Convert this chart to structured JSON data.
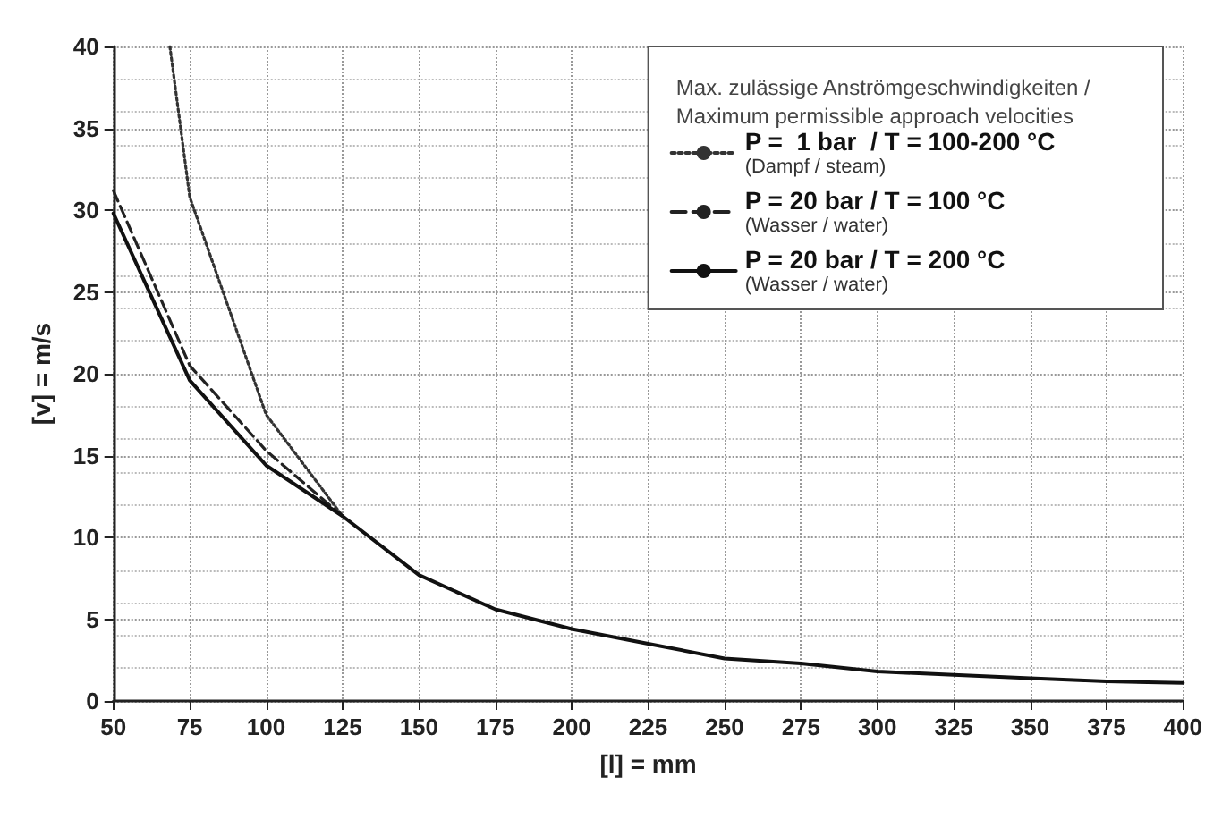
{
  "chart_data": {
    "type": "line",
    "title": "Max. zulässige Anströmgeschwindigkeiten /\nMaximum permissible approach velocities",
    "xlabel": "[l] = mm",
    "ylabel": "[v] = m/s",
    "xlim": [
      50,
      400
    ],
    "xticks": [
      50,
      75,
      100,
      125,
      150,
      175,
      200,
      225,
      250,
      275,
      300,
      325,
      350,
      375,
      400
    ],
    "ylim": [
      0,
      40
    ],
    "yticks": [
      0,
      5,
      10,
      15,
      20,
      25,
      30,
      35,
      40
    ],
    "grid": true,
    "legend": "top right",
    "marker": "none",
    "series": [
      {
        "name": "P =  1 bar  / T = 100-200 °C\n(Dampf / steam)",
        "color": "#333333",
        "line_style": "dotted",
        "x": [
          68.5,
          75,
          100,
          125
        ],
        "values": [
          40,
          30.8,
          17.5,
          11.3
        ]
      },
      {
        "name": "P = 20 bar / T = 100 °C\n(Wasser / water)",
        "color": "#222222",
        "line_style": "dashed",
        "x": [
          50,
          75,
          100,
          125
        ],
        "values": [
          31.2,
          20.5,
          15.3,
          11.3
        ]
      },
      {
        "name": "P = 20 bar / T = 200 °C\n(Wasser / water)",
        "color": "#111111",
        "line_style": "solid",
        "x": [
          50,
          75,
          100,
          125,
          150,
          175,
          200,
          225,
          250,
          275,
          300,
          325,
          350,
          375,
          400
        ],
        "values": [
          29.8,
          19.6,
          14.4,
          11.3,
          7.7,
          5.6,
          4.4,
          3.5,
          2.6,
          2.3,
          1.8,
          1.6,
          1.4,
          1.2,
          1.1
        ]
      }
    ]
  }
}
